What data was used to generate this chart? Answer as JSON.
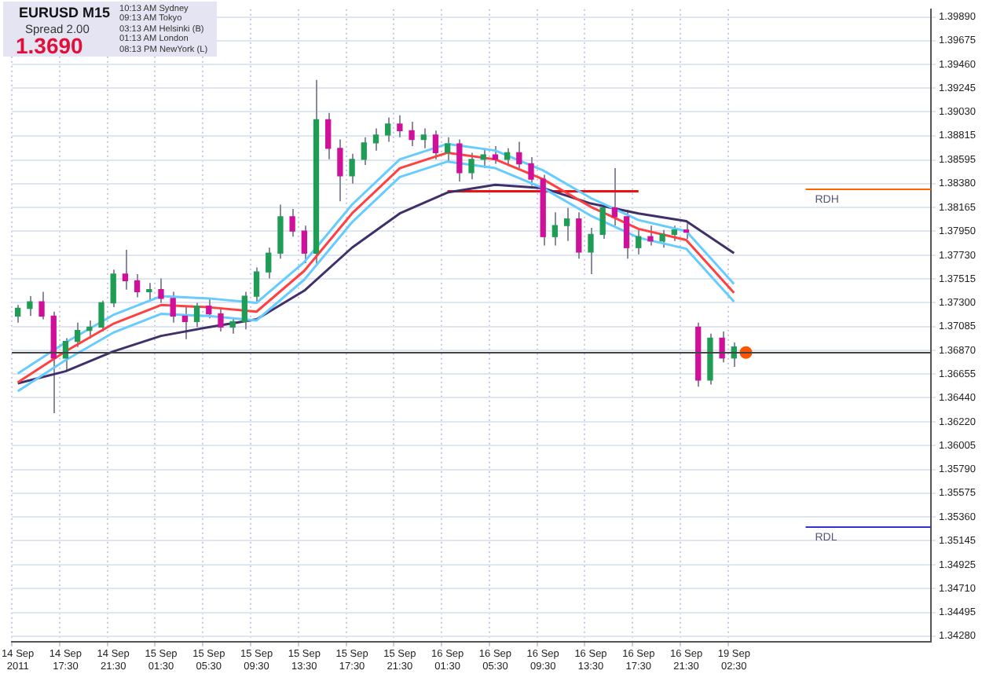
{
  "chart_data": {
    "type": "candlestick",
    "title": "EURUSD M15",
    "annotations": [
      "Spread 2.00",
      "1.3690",
      "10:13 AM Sydney",
      "09:13 AM Tokyo",
      "03:13 AM Helsinki (B)",
      "01:13 AM London",
      "08:13 PM NewYork (L)"
    ],
    "categories": [
      "14 Sep 2011",
      null,
      null,
      null,
      "14 Sep 17:30",
      null,
      null,
      null,
      "14 Sep 21:30",
      null,
      null,
      null,
      "15 Sep 01:30",
      null,
      null,
      null,
      "15 Sep 05:30",
      null,
      null,
      null,
      "15 Sep 09:30",
      null,
      null,
      null,
      "15 Sep 13:30",
      null,
      null,
      null,
      "15 Sep 17:30",
      null,
      null,
      null,
      "15 Sep 21:30",
      null,
      null,
      null,
      "16 Sep 01:30",
      null,
      null,
      null,
      "16 Sep 05:30",
      null,
      null,
      null,
      "16 Sep 09:30",
      null,
      null,
      null,
      "16 Sep 13:30",
      null,
      null,
      null,
      "16 Sep 17:30",
      null,
      null,
      null,
      "16 Sep 21:30",
      null,
      null,
      null,
      "19 Sep 02:30",
      null,
      null,
      null,
      null,
      null,
      null,
      null,
      null,
      null,
      null,
      null,
      null,
      null,
      null,
      null,
      null
    ],
    "ohlc": [
      [
        1.3718,
        1.3728,
        1.3712,
        1.3725
      ],
      [
        1.3725,
        1.3736,
        1.3718,
        1.3731
      ],
      [
        1.3731,
        1.374,
        1.3715,
        1.3718
      ],
      [
        1.3718,
        1.3722,
        1.363,
        1.368
      ],
      [
        1.368,
        1.3698,
        1.3668,
        1.3695
      ],
      [
        1.3695,
        1.3712,
        1.369,
        1.3705
      ],
      [
        1.3705,
        1.3714,
        1.3698,
        1.3708
      ],
      [
        1.3708,
        1.3732,
        1.3704,
        1.373
      ],
      [
        1.373,
        1.376,
        1.3726,
        1.3756
      ],
      [
        1.3756,
        1.3778,
        1.3742,
        1.375
      ],
      [
        1.375,
        1.3756,
        1.3735,
        1.374
      ],
      [
        1.374,
        1.3748,
        1.3732,
        1.3742
      ],
      [
        1.3742,
        1.3752,
        1.373,
        1.3734
      ],
      [
        1.3734,
        1.374,
        1.3712,
        1.3718
      ],
      [
        1.3718,
        1.3726,
        1.3697,
        1.3713
      ],
      [
        1.3713,
        1.373,
        1.3708,
        1.3727
      ],
      [
        1.3727,
        1.3734,
        1.3716,
        1.372
      ],
      [
        1.372,
        1.3724,
        1.3704,
        1.3708
      ],
      [
        1.3708,
        1.3716,
        1.3702,
        1.3713
      ],
      [
        1.3713,
        1.374,
        1.3706,
        1.3736
      ],
      [
        1.3736,
        1.3762,
        1.373,
        1.3758
      ],
      [
        1.3758,
        1.378,
        1.3752,
        1.3775
      ],
      [
        1.3775,
        1.3819,
        1.377,
        1.3808
      ],
      [
        1.3808,
        1.3815,
        1.379,
        1.3795
      ],
      [
        1.3795,
        1.38,
        1.3766,
        1.3775
      ],
      [
        1.3775,
        1.3932,
        1.3765,
        1.3896
      ],
      [
        1.3896,
        1.3902,
        1.386,
        1.387
      ],
      [
        1.387,
        1.3878,
        1.3822,
        1.3845
      ],
      [
        1.3845,
        1.3865,
        1.3838,
        1.386
      ],
      [
        1.386,
        1.388,
        1.3855,
        1.3875
      ],
      [
        1.3875,
        1.3888,
        1.3868,
        1.3882
      ],
      [
        1.3882,
        1.3898,
        1.3876,
        1.3892
      ],
      [
        1.3892,
        1.39,
        1.388,
        1.3886
      ],
      [
        1.3886,
        1.3894,
        1.3872,
        1.3878
      ],
      [
        1.3878,
        1.3888,
        1.387,
        1.3882
      ],
      [
        1.3882,
        1.3886,
        1.386,
        1.3866
      ],
      [
        1.3866,
        1.388,
        1.3858,
        1.3874
      ],
      [
        1.3874,
        1.3878,
        1.384,
        1.3848
      ],
      [
        1.3848,
        1.3866,
        1.3842,
        1.386
      ],
      [
        1.386,
        1.387,
        1.3852,
        1.3864
      ],
      [
        1.3864,
        1.3872,
        1.3856,
        1.386
      ],
      [
        1.386,
        1.387,
        1.3854,
        1.3866
      ],
      [
        1.3866,
        1.3876,
        1.3852,
        1.3856
      ],
      [
        1.3856,
        1.3862,
        1.3836,
        1.3842
      ],
      [
        1.3842,
        1.3846,
        1.3782,
        1.379
      ],
      [
        1.379,
        1.3812,
        1.3782,
        1.38
      ],
      [
        1.38,
        1.3816,
        1.3786,
        1.3806
      ],
      [
        1.3806,
        1.3812,
        1.377,
        1.3776
      ],
      [
        1.3776,
        1.3798,
        1.3756,
        1.3792
      ],
      [
        1.3792,
        1.382,
        1.3788,
        1.3816
      ],
      [
        1.3816,
        1.3852,
        1.38,
        1.3808
      ],
      [
        1.3808,
        1.3814,
        1.377,
        1.378
      ],
      [
        1.378,
        1.3796,
        1.3774,
        1.379
      ],
      [
        1.379,
        1.38,
        1.3782,
        1.3786
      ],
      [
        1.3786,
        1.3796,
        1.378,
        1.3792
      ],
      [
        1.3792,
        1.38,
        1.3786,
        1.3796
      ],
      [
        1.3796,
        1.3802,
        1.3788,
        1.3794
      ],
      [
        1.3708,
        1.3712,
        1.3654,
        1.366
      ],
      [
        1.366,
        1.3702,
        1.3656,
        1.3698
      ],
      [
        1.3698,
        1.3704,
        1.3676,
        1.368
      ],
      [
        1.368,
        1.3694,
        1.3672,
        1.369
      ],
      null,
      null,
      null,
      null,
      null,
      null,
      null,
      null,
      null,
      null,
      null,
      null,
      null,
      null,
      null,
      null
    ],
    "series": [
      {
        "type": "line",
        "color": "#ff4040",
        "values": [
          1.3658,
          null,
          null,
          null,
          1.3686,
          null,
          null,
          null,
          1.3711,
          null,
          null,
          null,
          1.3728,
          null,
          null,
          null,
          1.3726,
          null,
          null,
          null,
          1.3722,
          null,
          null,
          null,
          1.3759,
          null,
          null,
          null,
          1.3811,
          null,
          null,
          null,
          1.3852,
          null,
          null,
          null,
          1.3866,
          null,
          null,
          null,
          1.386,
          null,
          null,
          null,
          1.3842,
          null,
          null,
          null,
          1.3817,
          null,
          null,
          null,
          1.3797,
          null,
          null,
          null,
          1.3787,
          null,
          null,
          null,
          1.3739,
          null,
          null,
          null,
          null,
          null,
          null,
          null,
          null,
          null,
          null,
          null,
          null,
          null,
          null,
          null,
          null
        ]
      },
      {
        "type": "line",
        "color": "#66ccff",
        "values": [
          1.365,
          null,
          null,
          null,
          1.3678,
          null,
          null,
          null,
          1.3703,
          null,
          null,
          null,
          1.372,
          null,
          null,
          null,
          1.3718,
          null,
          null,
          null,
          1.3714,
          null,
          null,
          null,
          1.3751,
          null,
          null,
          null,
          1.3803,
          null,
          null,
          null,
          1.3844,
          null,
          null,
          null,
          1.3858,
          null,
          null,
          null,
          1.3852,
          null,
          null,
          null,
          1.3834,
          null,
          null,
          null,
          1.3809,
          null,
          null,
          null,
          1.3789,
          null,
          null,
          null,
          1.3779,
          null,
          null,
          null,
          1.3731,
          null,
          null,
          null,
          null,
          null,
          null,
          null,
          null,
          null,
          null,
          null,
          null,
          null,
          null,
          null,
          null
        ]
      },
      {
        "type": "line",
        "color": "#66ccff",
        "values": [
          1.3666,
          null,
          null,
          null,
          1.3694,
          null,
          null,
          null,
          1.3719,
          null,
          null,
          null,
          1.3736,
          null,
          null,
          null,
          1.3734,
          null,
          null,
          null,
          1.373,
          null,
          null,
          null,
          1.3767,
          null,
          null,
          null,
          1.3819,
          null,
          null,
          null,
          1.386,
          null,
          null,
          null,
          1.3874,
          null,
          null,
          null,
          1.3868,
          null,
          null,
          null,
          1.385,
          null,
          null,
          null,
          1.3825,
          null,
          null,
          null,
          1.3805,
          null,
          null,
          null,
          1.3795,
          null,
          null,
          null,
          1.3747,
          null,
          null,
          null,
          null,
          null,
          null,
          null,
          null,
          null,
          null,
          null,
          null,
          null,
          null,
          null,
          null
        ]
      },
      {
        "type": "line",
        "color": "#40306a",
        "values": [
          1.3657,
          null,
          null,
          null,
          1.3668,
          null,
          null,
          null,
          1.3686,
          null,
          null,
          null,
          1.37,
          null,
          null,
          null,
          1.3708,
          null,
          null,
          null,
          1.3715,
          null,
          null,
          null,
          1.3741,
          null,
          null,
          null,
          1.378,
          null,
          null,
          null,
          1.3811,
          null,
          null,
          null,
          1.383,
          null,
          null,
          null,
          1.3837,
          null,
          null,
          null,
          1.3834,
          null,
          null,
          null,
          1.382,
          null,
          null,
          null,
          1.3811,
          null,
          null,
          null,
          1.3804,
          null,
          null,
          null,
          1.3775,
          null,
          null,
          null,
          null,
          null,
          null,
          null,
          null,
          null,
          null,
          null,
          null,
          null,
          null,
          null,
          null
        ]
      },
      {
        "type": "line",
        "color": "#ee1111",
        "values": [
          null,
          null,
          null,
          null,
          null,
          null,
          null,
          null,
          null,
          null,
          null,
          null,
          null,
          null,
          null,
          null,
          null,
          null,
          null,
          null,
          null,
          null,
          null,
          null,
          null,
          null,
          null,
          null,
          null,
          null,
          null,
          null,
          null,
          null,
          null,
          null,
          1.3831,
          null,
          null,
          null,
          null,
          null,
          null,
          null,
          null,
          null,
          null,
          null,
          null,
          null,
          null,
          null,
          1.3831,
          null,
          null,
          null,
          null,
          null,
          null,
          null,
          null,
          null,
          null,
          null,
          null,
          null,
          null,
          null,
          null,
          null,
          null,
          null,
          null,
          null,
          null,
          null,
          null
        ]
      },
      {
        "type": "scatter",
        "color": "#ff5500",
        "marker": "circle",
        "values": [
          null,
          null,
          null,
          null,
          null,
          null,
          null,
          null,
          null,
          null,
          null,
          null,
          null,
          null,
          null,
          null,
          null,
          null,
          null,
          null,
          null,
          null,
          null,
          null,
          null,
          null,
          null,
          null,
          null,
          null,
          null,
          null,
          null,
          null,
          null,
          null,
          null,
          null,
          null,
          null,
          null,
          null,
          null,
          null,
          null,
          null,
          null,
          null,
          null,
          null,
          null,
          null,
          null,
          null,
          null,
          null,
          null,
          null,
          null,
          null,
          null,
          1.3685,
          null,
          null,
          null,
          null,
          null,
          null,
          null,
          null,
          null,
          null,
          null,
          null,
          null,
          null,
          null
        ]
      }
    ],
    "ref_lines": [
      {
        "axis": "y",
        "value": 1.3685,
        "color": "#444444"
      },
      {
        "axis": "y",
        "value": 1.3834,
        "label": "RDH",
        "color": "#ff6600"
      },
      {
        "axis": "y",
        "value": 1.3527,
        "label": "RDL",
        "color": "#3333cc"
      }
    ],
    "ylim": [
      1.3423,
      1.3996
    ],
    "yticks": [
      {
        "value": 1.3428,
        "label": "1.34280"
      },
      {
        "value": 1.34495,
        "label": "1.34495"
      },
      {
        "value": 1.3471,
        "label": "1.34710"
      },
      {
        "value": 1.34925,
        "label": "1.34925"
      },
      {
        "value": 1.35145,
        "label": "1.35145"
      },
      {
        "value": 1.3536,
        "label": "1.35360"
      },
      {
        "value": 1.35575,
        "label": "1.35575"
      },
      {
        "value": 1.3579,
        "label": "1.35790"
      },
      {
        "value": 1.36005,
        "label": "1.36005"
      },
      {
        "value": 1.3622,
        "label": "1.36220"
      },
      {
        "value": 1.3644,
        "label": "1.36440"
      },
      {
        "value": 1.36655,
        "label": "1.36655"
      },
      {
        "value": 1.3687,
        "label": "1.36870"
      },
      {
        "value": 1.37085,
        "label": "1.37085"
      },
      {
        "value": 1.373,
        "label": "1.37300"
      },
      {
        "value": 1.37515,
        "label": "1.37515"
      },
      {
        "value": 1.3773,
        "label": "1.37730"
      },
      {
        "value": 1.3795,
        "label": "1.37950"
      },
      {
        "value": 1.38165,
        "label": "1.38165"
      },
      {
        "value": 1.3838,
        "label": "1.38380"
      },
      {
        "value": 1.38595,
        "label": "1.38595"
      },
      {
        "value": 1.38815,
        "label": "1.38815"
      },
      {
        "value": 1.3903,
        "label": "1.39030"
      },
      {
        "value": 1.39245,
        "label": "1.39245"
      },
      {
        "value": 1.3946,
        "label": "1.39460"
      },
      {
        "value": 1.39675,
        "label": "1.39675"
      },
      {
        "value": 1.3989,
        "label": "1.39890"
      }
    ],
    "grid": true,
    "legend": false
  }
}
